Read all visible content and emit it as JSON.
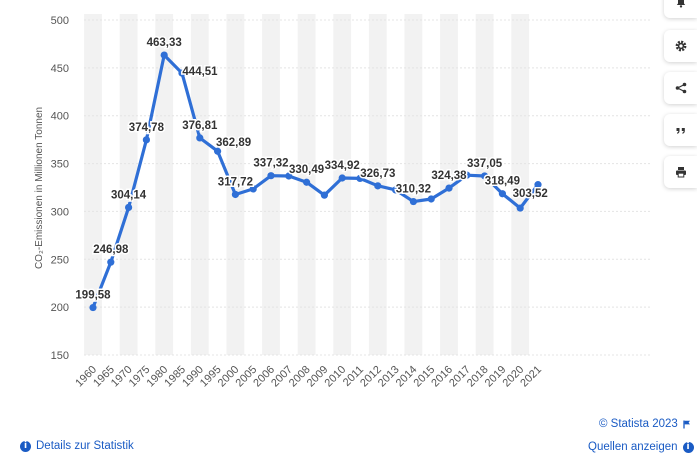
{
  "chart_data": {
    "type": "line",
    "title": "",
    "xlabel": "",
    "ylabel": "CO₂-Emissionen in Millionen Tonnen",
    "ylim": [
      150,
      500
    ],
    "yticks": [
      150,
      200,
      250,
      300,
      350,
      400,
      450,
      500
    ],
    "categories": [
      "1960",
      "1965",
      "1970",
      "1975",
      "1980",
      "1985",
      "1990",
      "1995",
      "2000",
      "2005",
      "2006",
      "2007",
      "2008",
      "2009",
      "2010",
      "2011",
      "2012",
      "2013",
      "2014",
      "2015",
      "2016",
      "2017",
      "2018",
      "2019",
      "2020",
      "2021"
    ],
    "values": [
      199.58,
      246.98,
      304.14,
      374.78,
      463.33,
      444.51,
      376.81,
      362.89,
      317.72,
      323.5,
      337.32,
      337.0,
      330.49,
      317.0,
      334.92,
      334.5,
      326.73,
      322.5,
      310.32,
      313.0,
      324.38,
      337.9,
      337.05,
      318.49,
      303.52,
      328.0
    ],
    "data_labels": [
      "199,58",
      "246,98",
      "304,14",
      "374,78",
      "463,33",
      "444,51",
      "376,81",
      "362,89",
      "317,72",
      "",
      "337,32",
      "",
      "330,49",
      "",
      "334,92",
      "",
      "326,73",
      "",
      "310,32",
      "",
      "324,38",
      "",
      "337,05",
      "318,49",
      "303,52",
      ""
    ],
    "series_color": "#2f6fd6",
    "legend": "none",
    "grid": true
  },
  "toolbar": {
    "icons": [
      "bell-icon",
      "gear-icon",
      "share-icon",
      "quote-icon",
      "print-icon"
    ]
  },
  "footer": {
    "copyright": "© Statista 2023",
    "details_link": "Details zur Statistik",
    "sources_link": "Quellen anzeigen"
  }
}
